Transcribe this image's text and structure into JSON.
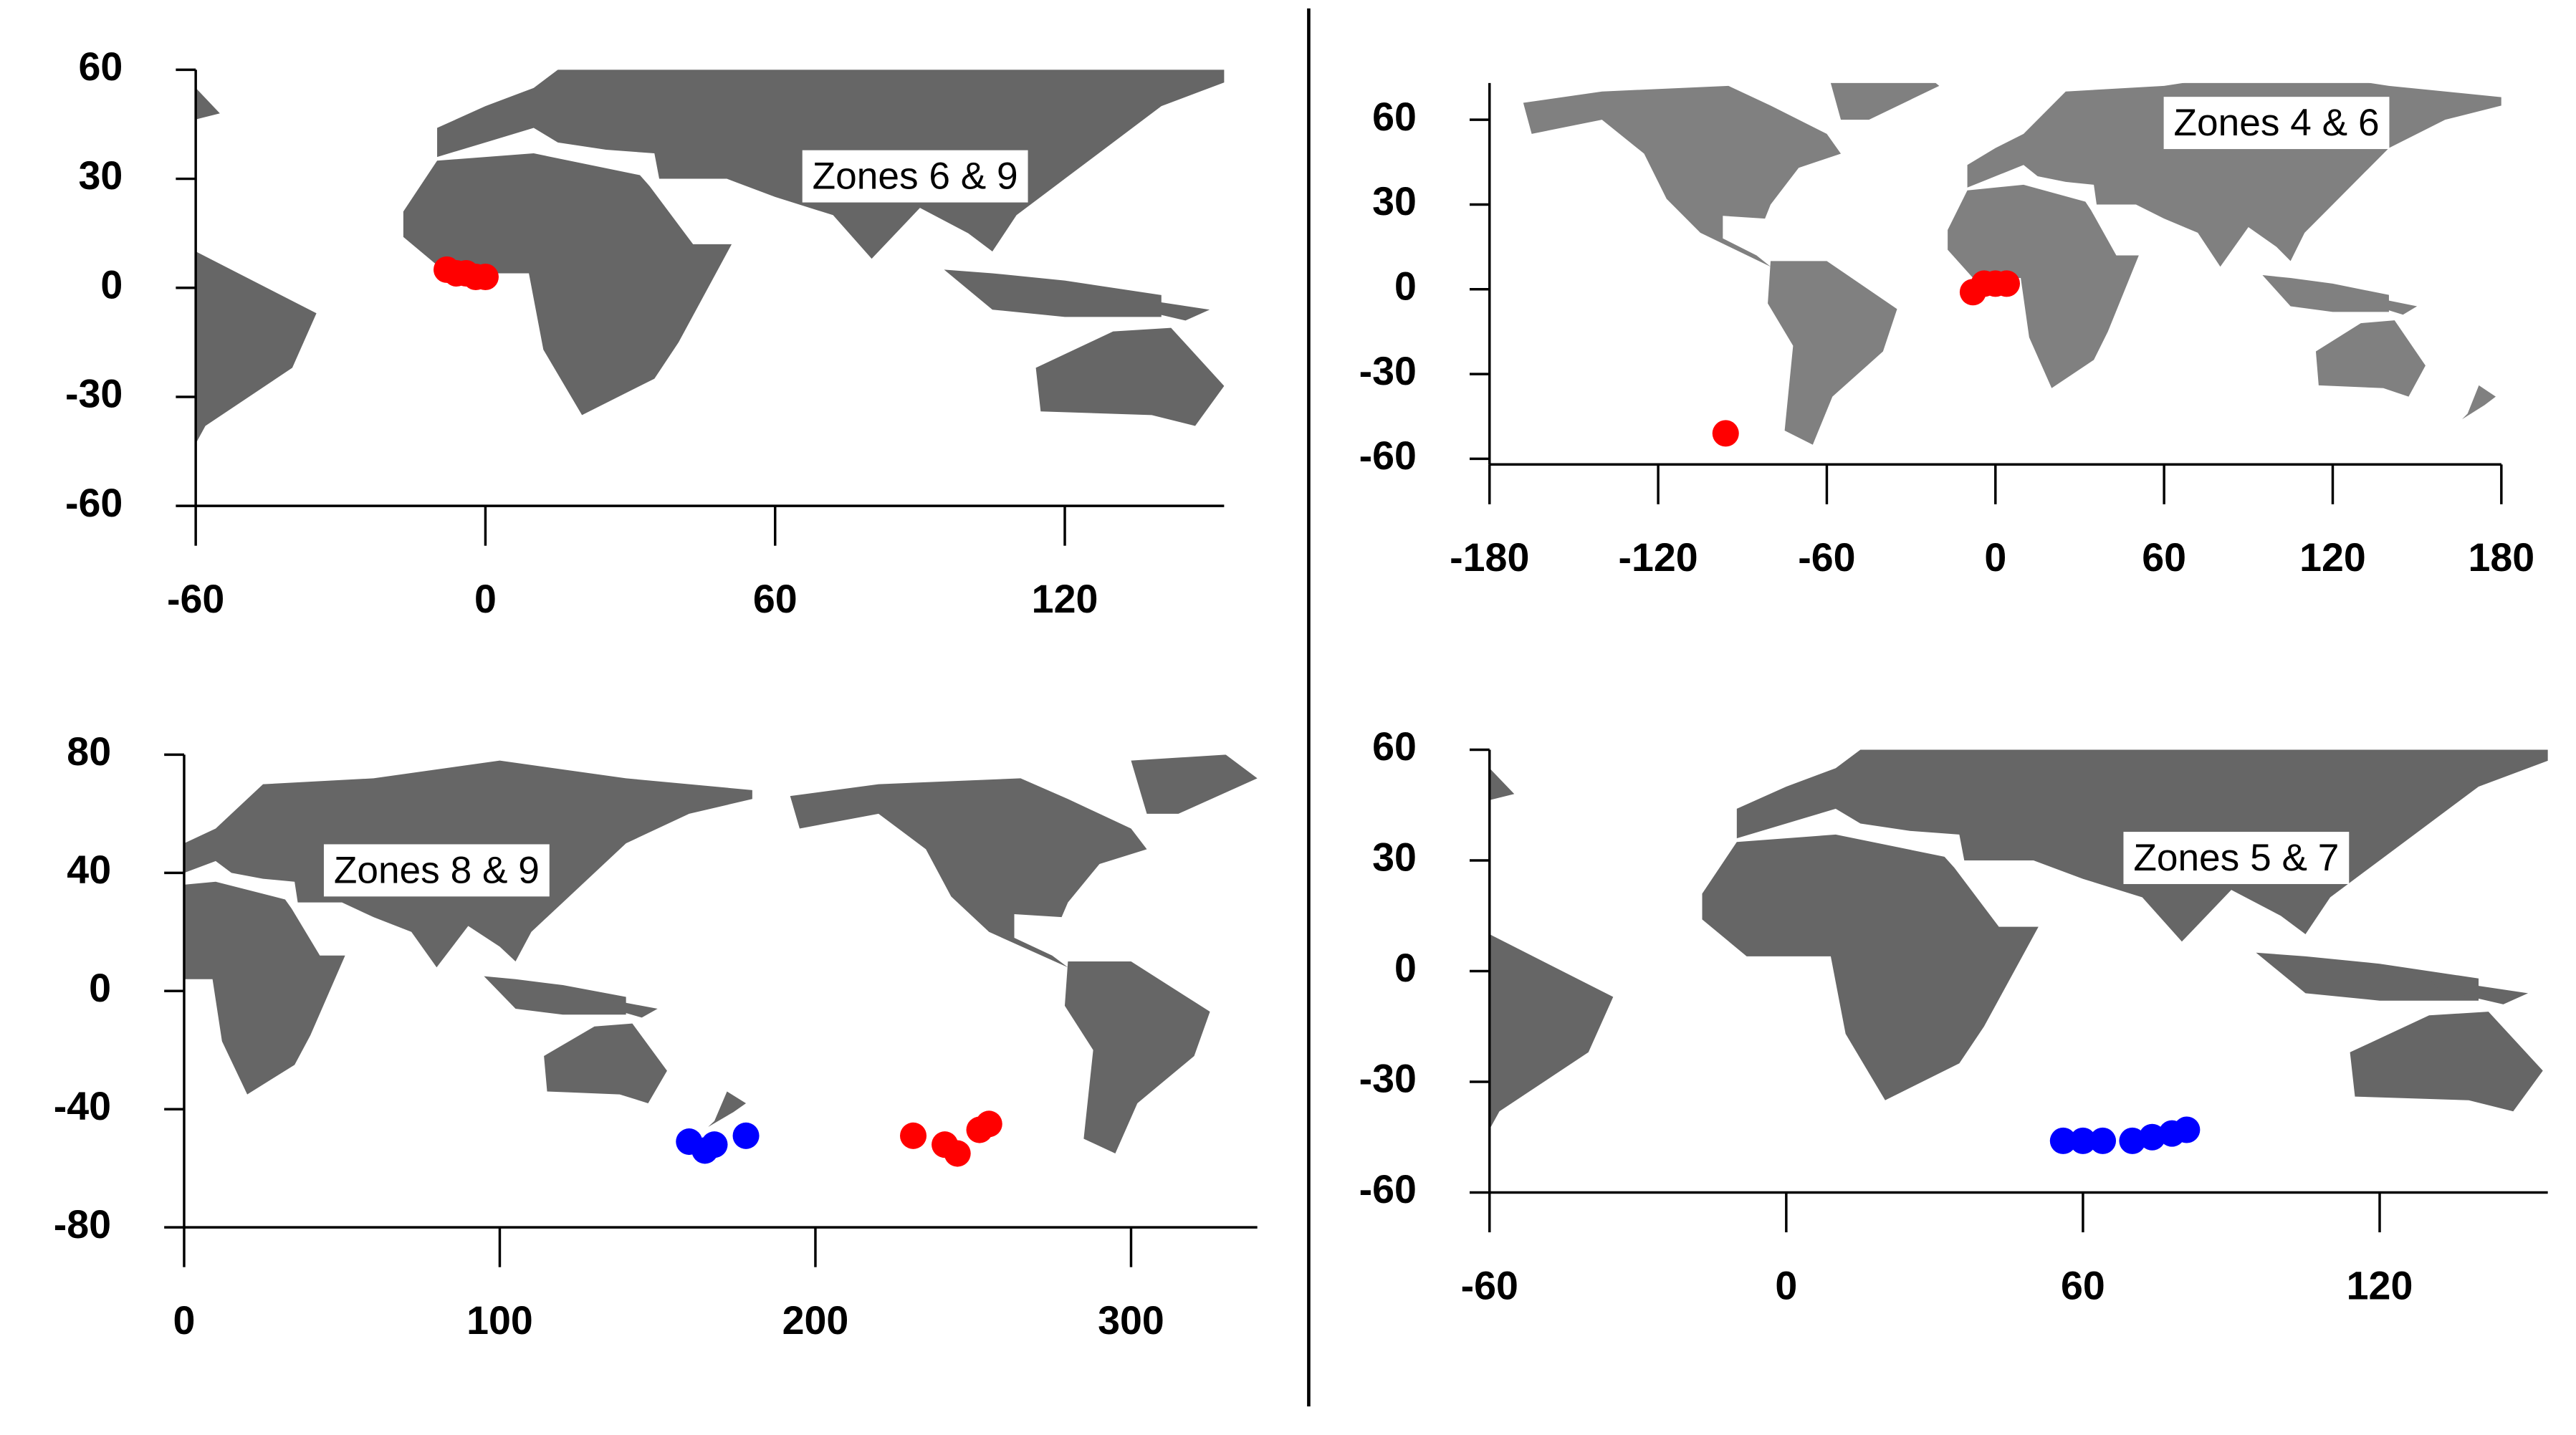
{
  "chart_data": [
    {
      "type": "scatter",
      "annotation": "Zones 6 & 9",
      "xlim": [
        -60,
        153
      ],
      "ylim": [
        -60,
        60
      ],
      "xticks": [
        -60,
        0,
        60,
        120
      ],
      "yticks": [
        -60,
        -30,
        0,
        30,
        60
      ],
      "land_color": "#666666",
      "series": [
        {
          "color": "#ff0000",
          "x": [
            -8,
            -6,
            -4,
            -2,
            0
          ],
          "y": [
            5,
            4,
            4,
            3,
            3
          ]
        }
      ]
    },
    {
      "type": "scatter",
      "annotation": "Zones 4 & 6",
      "xlim": [
        -180,
        180
      ],
      "ylim": [
        -62,
        73
      ],
      "xticks": [
        -180,
        -120,
        -60,
        0,
        60,
        120,
        180
      ],
      "yticks": [
        -60,
        -30,
        0,
        30,
        60
      ],
      "land_color": "#808080",
      "series": [
        {
          "color": "#ff0000",
          "x": [
            -8,
            -4,
            0,
            4,
            -96
          ],
          "y": [
            -1,
            2,
            2,
            2,
            -51
          ]
        }
      ]
    },
    {
      "type": "scatter",
      "annotation": "Zones 8 & 9",
      "xlim": [
        0,
        340
      ],
      "ylim": [
        -80,
        80
      ],
      "xticks": [
        0,
        100,
        200,
        300
      ],
      "yticks": [
        -80,
        -40,
        0,
        40,
        80
      ],
      "land_color": "#666666",
      "series": [
        {
          "color": "#0000ff",
          "x": [
            160,
            165,
            168,
            178
          ],
          "y": [
            -51,
            -54,
            -52,
            -49
          ]
        },
        {
          "color": "#ff0000",
          "x": [
            231,
            241,
            245,
            252,
            255
          ],
          "y": [
            -49,
            -52,
            -55,
            -47,
            -45
          ]
        }
      ]
    },
    {
      "type": "scatter",
      "annotation": "Zones 5 & 7",
      "xlim": [
        -60,
        154
      ],
      "ylim": [
        -60,
        60
      ],
      "xticks": [
        -60,
        0,
        60,
        120
      ],
      "yticks": [
        -60,
        -30,
        0,
        30,
        60
      ],
      "land_color": "#666666",
      "series": [
        {
          "color": "#0000ff",
          "x": [
            56,
            60,
            64,
            70,
            74,
            78,
            81
          ],
          "y": [
            -46,
            -46,
            -46,
            -46,
            -45,
            -44,
            -43
          ]
        }
      ]
    }
  ]
}
